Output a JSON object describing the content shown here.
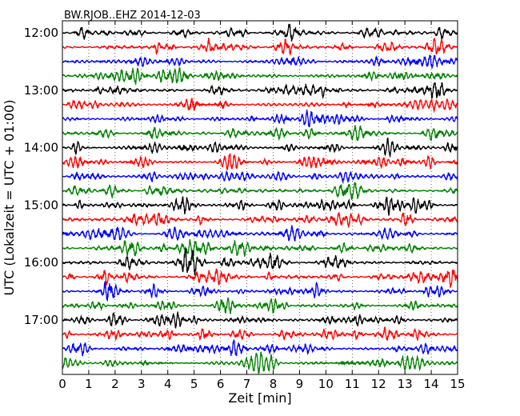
{
  "chart_data": {
    "type": "line",
    "title": "BW.RJOB..EHZ 2014-12-03",
    "xlabel": "Zeit  [min]",
    "ylabel": "UTC (Lokalzeit = UTC + 01:00)",
    "xlim": [
      0,
      15
    ],
    "x_ticks": [
      "0",
      "1",
      "2",
      "3",
      "4",
      "5",
      "6",
      "7",
      "8",
      "9",
      "10",
      "11",
      "12",
      "13",
      "14",
      "15"
    ],
    "y_tick_labels": [
      "12:00",
      "13:00",
      "14:00",
      "15:00",
      "16:00",
      "17:00"
    ],
    "y_tick_traces": [
      0,
      4,
      8,
      12,
      16,
      20
    ],
    "trace_interval_min": 15,
    "trace_start": "12:00",
    "trace_count": 24,
    "trace_colors": [
      "#000000",
      "#ff0000",
      "#0000ff",
      "#008000"
    ],
    "grid_x": "dotted",
    "grid_y": "none",
    "legend": "none"
  }
}
